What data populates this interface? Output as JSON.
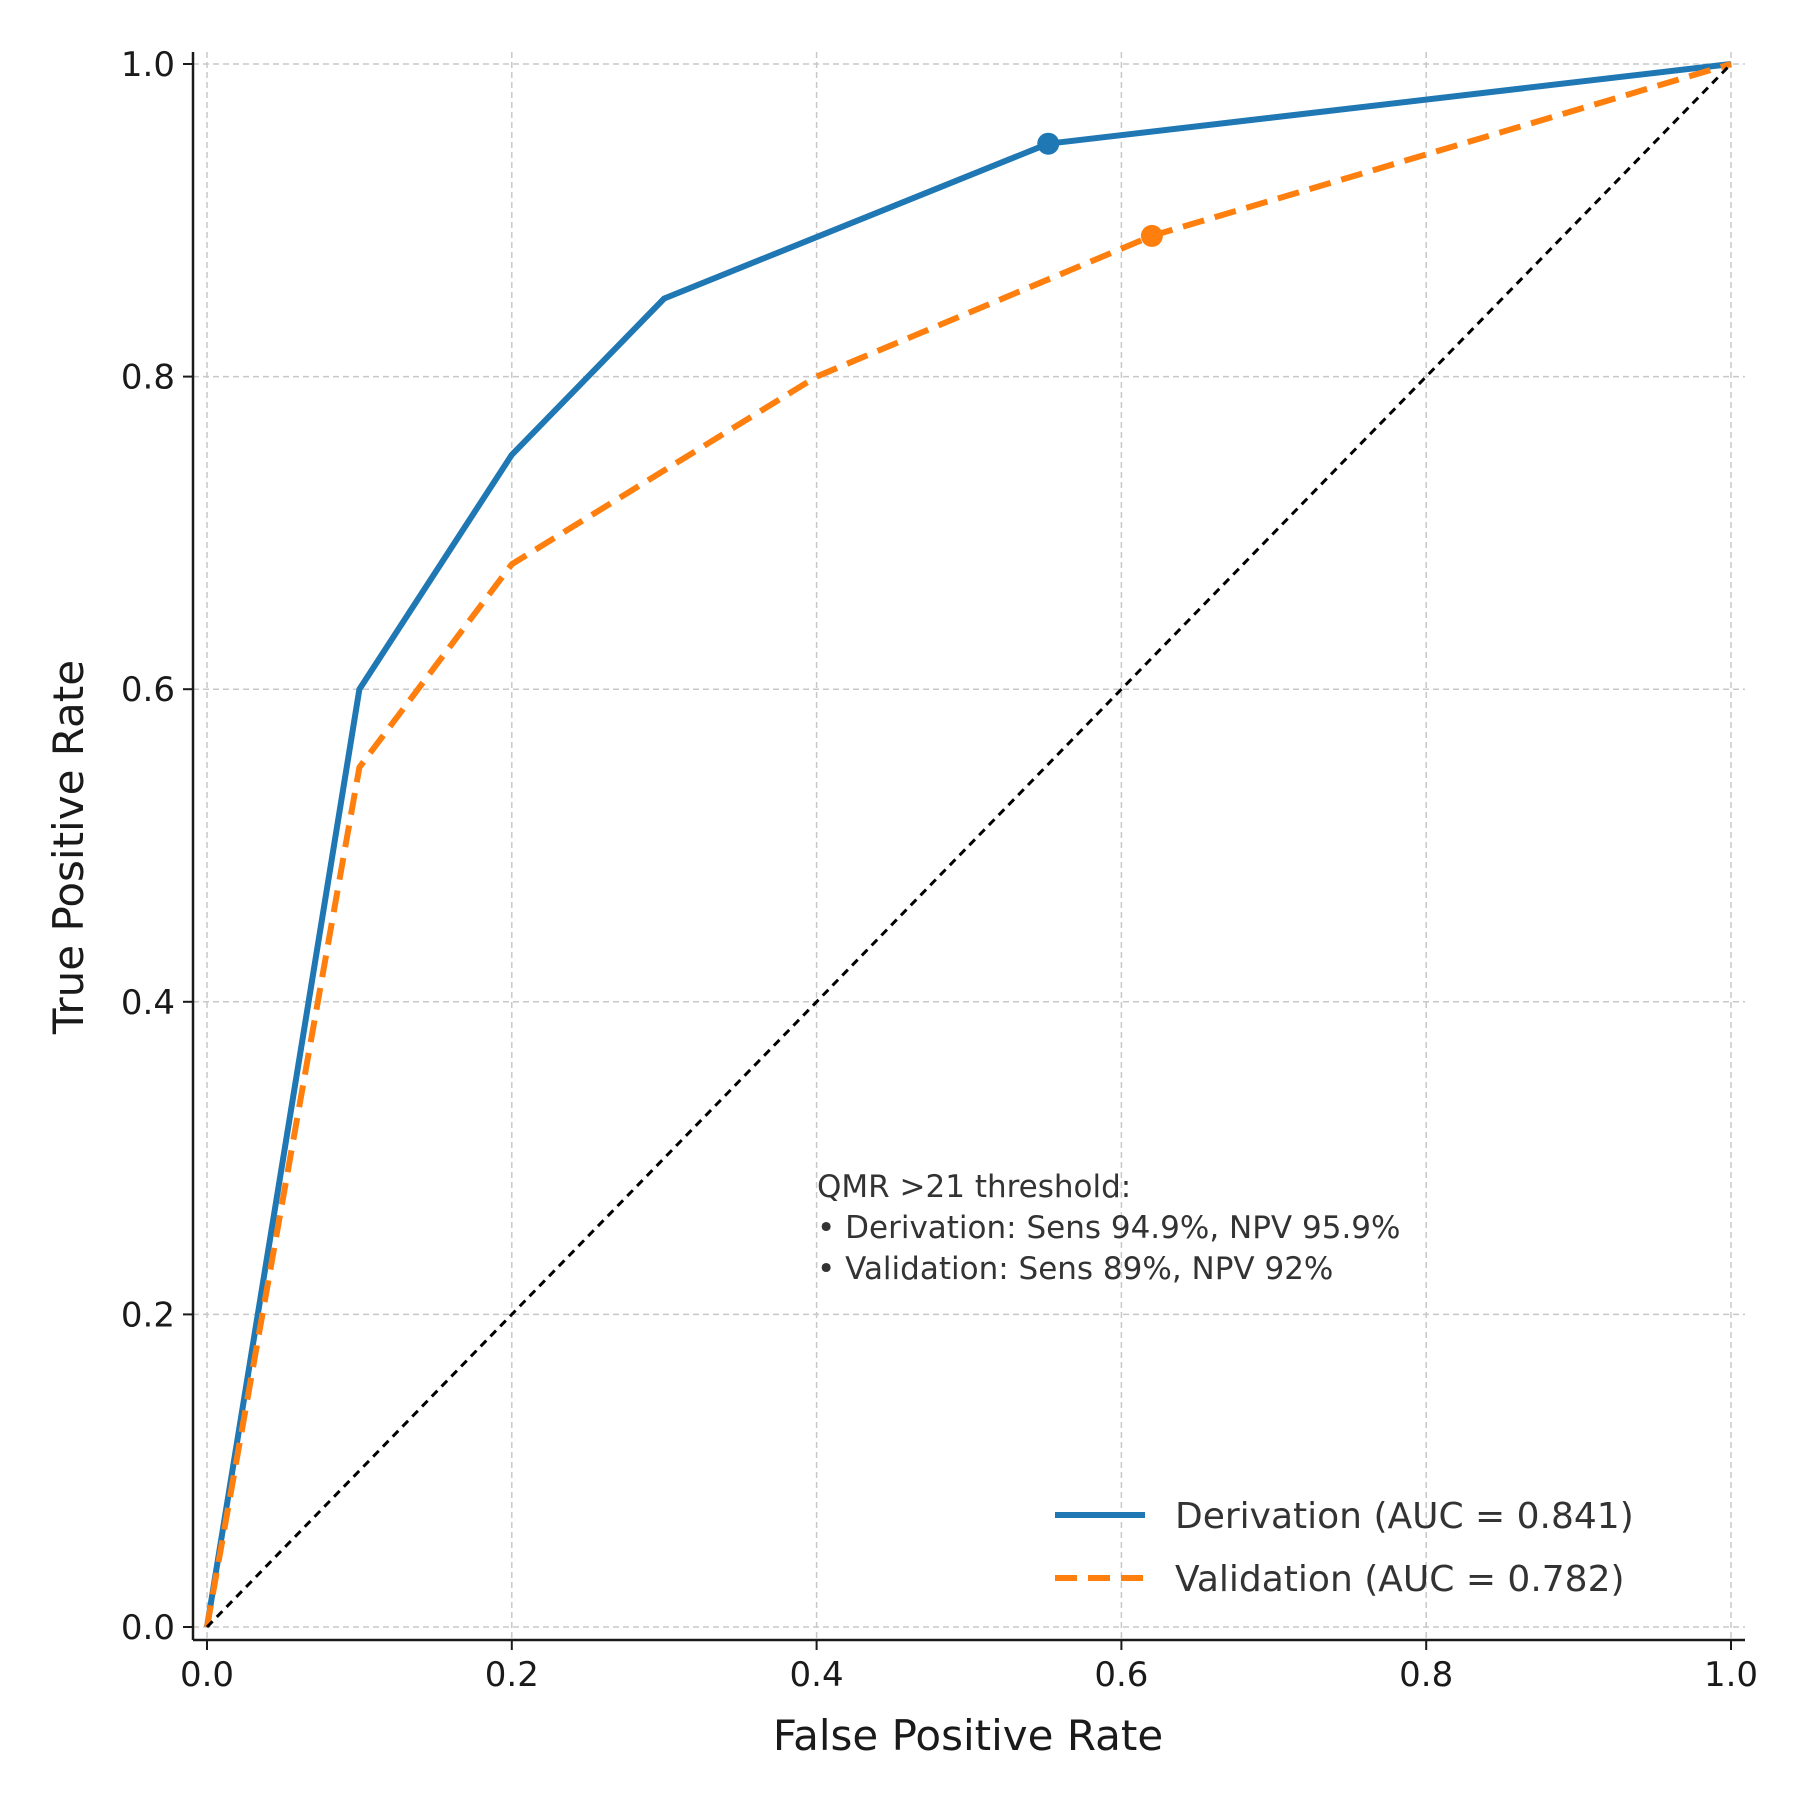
{
  "chart_data": {
    "type": "line",
    "title": "",
    "xlabel": "False Positive Rate",
    "ylabel": "True Positive Rate",
    "xlim": [
      0,
      1
    ],
    "ylim": [
      0,
      1
    ],
    "grid": true,
    "x_ticks": [
      0,
      0.2,
      0.4,
      0.6,
      0.8,
      1.0
    ],
    "x_tick_labels": [
      "0.0",
      "0.2",
      "0.4",
      "0.6",
      "0.8",
      "1.0"
    ],
    "y_ticks": [
      0,
      0.2,
      0.4,
      0.6,
      0.8,
      1.0
    ],
    "y_tick_labels": [
      "0.0",
      "0.2",
      "0.4",
      "0.6",
      "0.8",
      "1.0"
    ],
    "legend_position": "bottom-right",
    "series": [
      {
        "name": "Derivation (AUC = 0.841)",
        "color": "#1f77b4",
        "style": "solid",
        "x": [
          0,
          0.1,
          0.2,
          0.3,
          0.552,
          1.0
        ],
        "y": [
          0,
          0.6,
          0.75,
          0.85,
          0.949,
          1.0
        ],
        "highlight_point": {
          "x": 0.552,
          "y": 0.949
        }
      },
      {
        "name": "Validation (AUC = 0.782)",
        "color": "#ff7f0e",
        "style": "dashed",
        "x": [
          0,
          0.1,
          0.2,
          0.4,
          0.62,
          1.0
        ],
        "y": [
          0,
          0.55,
          0.68,
          0.8,
          0.89,
          1.0
        ],
        "highlight_point": {
          "x": 0.62,
          "y": 0.89
        }
      },
      {
        "name": "chance",
        "color": "#000000",
        "style": "dotted-dash",
        "x": [
          0,
          1
        ],
        "y": [
          0,
          1
        ],
        "in_legend": false
      }
    ],
    "annotation": {
      "lines": [
        "QMR >21 threshold:",
        "• Derivation: Sens 94.9%, NPV 95.9%",
        "• Validation: Sens 89%, NPV 92%"
      ],
      "anchor": {
        "x": 0.4,
        "y": 0.283
      }
    }
  }
}
